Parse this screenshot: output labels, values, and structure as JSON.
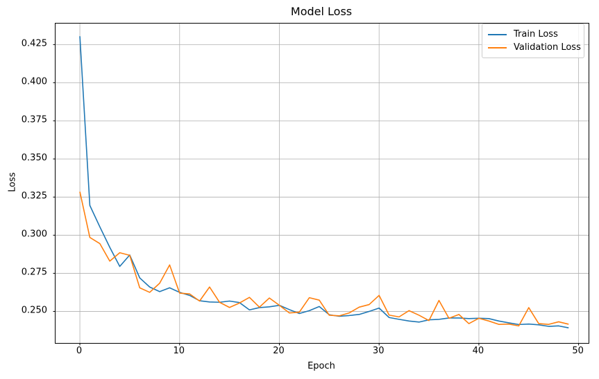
{
  "figure": {
    "title": "Model Loss",
    "xlabel": "Epoch",
    "ylabel": "Loss"
  },
  "chart_data": {
    "type": "line",
    "title": "Model Loss",
    "xlabel": "Epoch",
    "ylabel": "Loss",
    "grid": true,
    "legend_position": "upper right",
    "xlim": [
      -2.44,
      51.0
    ],
    "ylim": [
      0.2293,
      0.4388
    ],
    "xticks": [
      0,
      10,
      20,
      30,
      40,
      50
    ],
    "yticks": [
      0.25,
      0.275,
      0.3,
      0.325,
      0.35,
      0.375,
      0.4,
      0.425
    ],
    "x": [
      0,
      1,
      2,
      3,
      4,
      5,
      6,
      7,
      8,
      9,
      10,
      11,
      12,
      13,
      14,
      15,
      16,
      17,
      18,
      19,
      20,
      21,
      22,
      23,
      24,
      25,
      26,
      27,
      28,
      29,
      30,
      31,
      32,
      33,
      34,
      35,
      36,
      37,
      38,
      39,
      40,
      41,
      42,
      43,
      44,
      45,
      46,
      47,
      48,
      49
    ],
    "series": [
      {
        "name": "Train Loss",
        "color": "#1f77b4",
        "values": [
          0.4305,
          0.3195,
          0.3055,
          0.292,
          0.2795,
          0.287,
          0.272,
          0.266,
          0.263,
          0.2655,
          0.2625,
          0.2605,
          0.257,
          0.2562,
          0.256,
          0.2568,
          0.2558,
          0.251,
          0.2525,
          0.253,
          0.254,
          0.2512,
          0.2486,
          0.2505,
          0.2532,
          0.2478,
          0.2468,
          0.2473,
          0.248,
          0.25,
          0.2522,
          0.246,
          0.2448,
          0.2437,
          0.243,
          0.2445,
          0.2448,
          0.2457,
          0.2457,
          0.2453,
          0.2455,
          0.2453,
          0.2437,
          0.2425,
          0.2414,
          0.2417,
          0.2412,
          0.2402,
          0.2405,
          0.2392
        ]
      },
      {
        "name": "Validation Loss",
        "color": "#ff7f0e",
        "values": [
          0.3285,
          0.2985,
          0.2945,
          0.283,
          0.2885,
          0.2868,
          0.2655,
          0.2625,
          0.2685,
          0.2805,
          0.262,
          0.2615,
          0.2568,
          0.266,
          0.256,
          0.2526,
          0.2555,
          0.2592,
          0.2528,
          0.2588,
          0.254,
          0.249,
          0.2495,
          0.259,
          0.2574,
          0.2475,
          0.2471,
          0.249,
          0.2528,
          0.2545,
          0.2605,
          0.2476,
          0.2464,
          0.2505,
          0.2475,
          0.244,
          0.2572,
          0.2455,
          0.248,
          0.242,
          0.2455,
          0.2437,
          0.2415,
          0.2417,
          0.2405,
          0.2525,
          0.242,
          0.2415,
          0.2432,
          0.2416
        ]
      }
    ],
    "style": {
      "grid_color": "#b0b0b0",
      "spine_color": "#000000",
      "tick_color": "#000000",
      "background": "#ffffff",
      "line_width": 1.6
    }
  }
}
